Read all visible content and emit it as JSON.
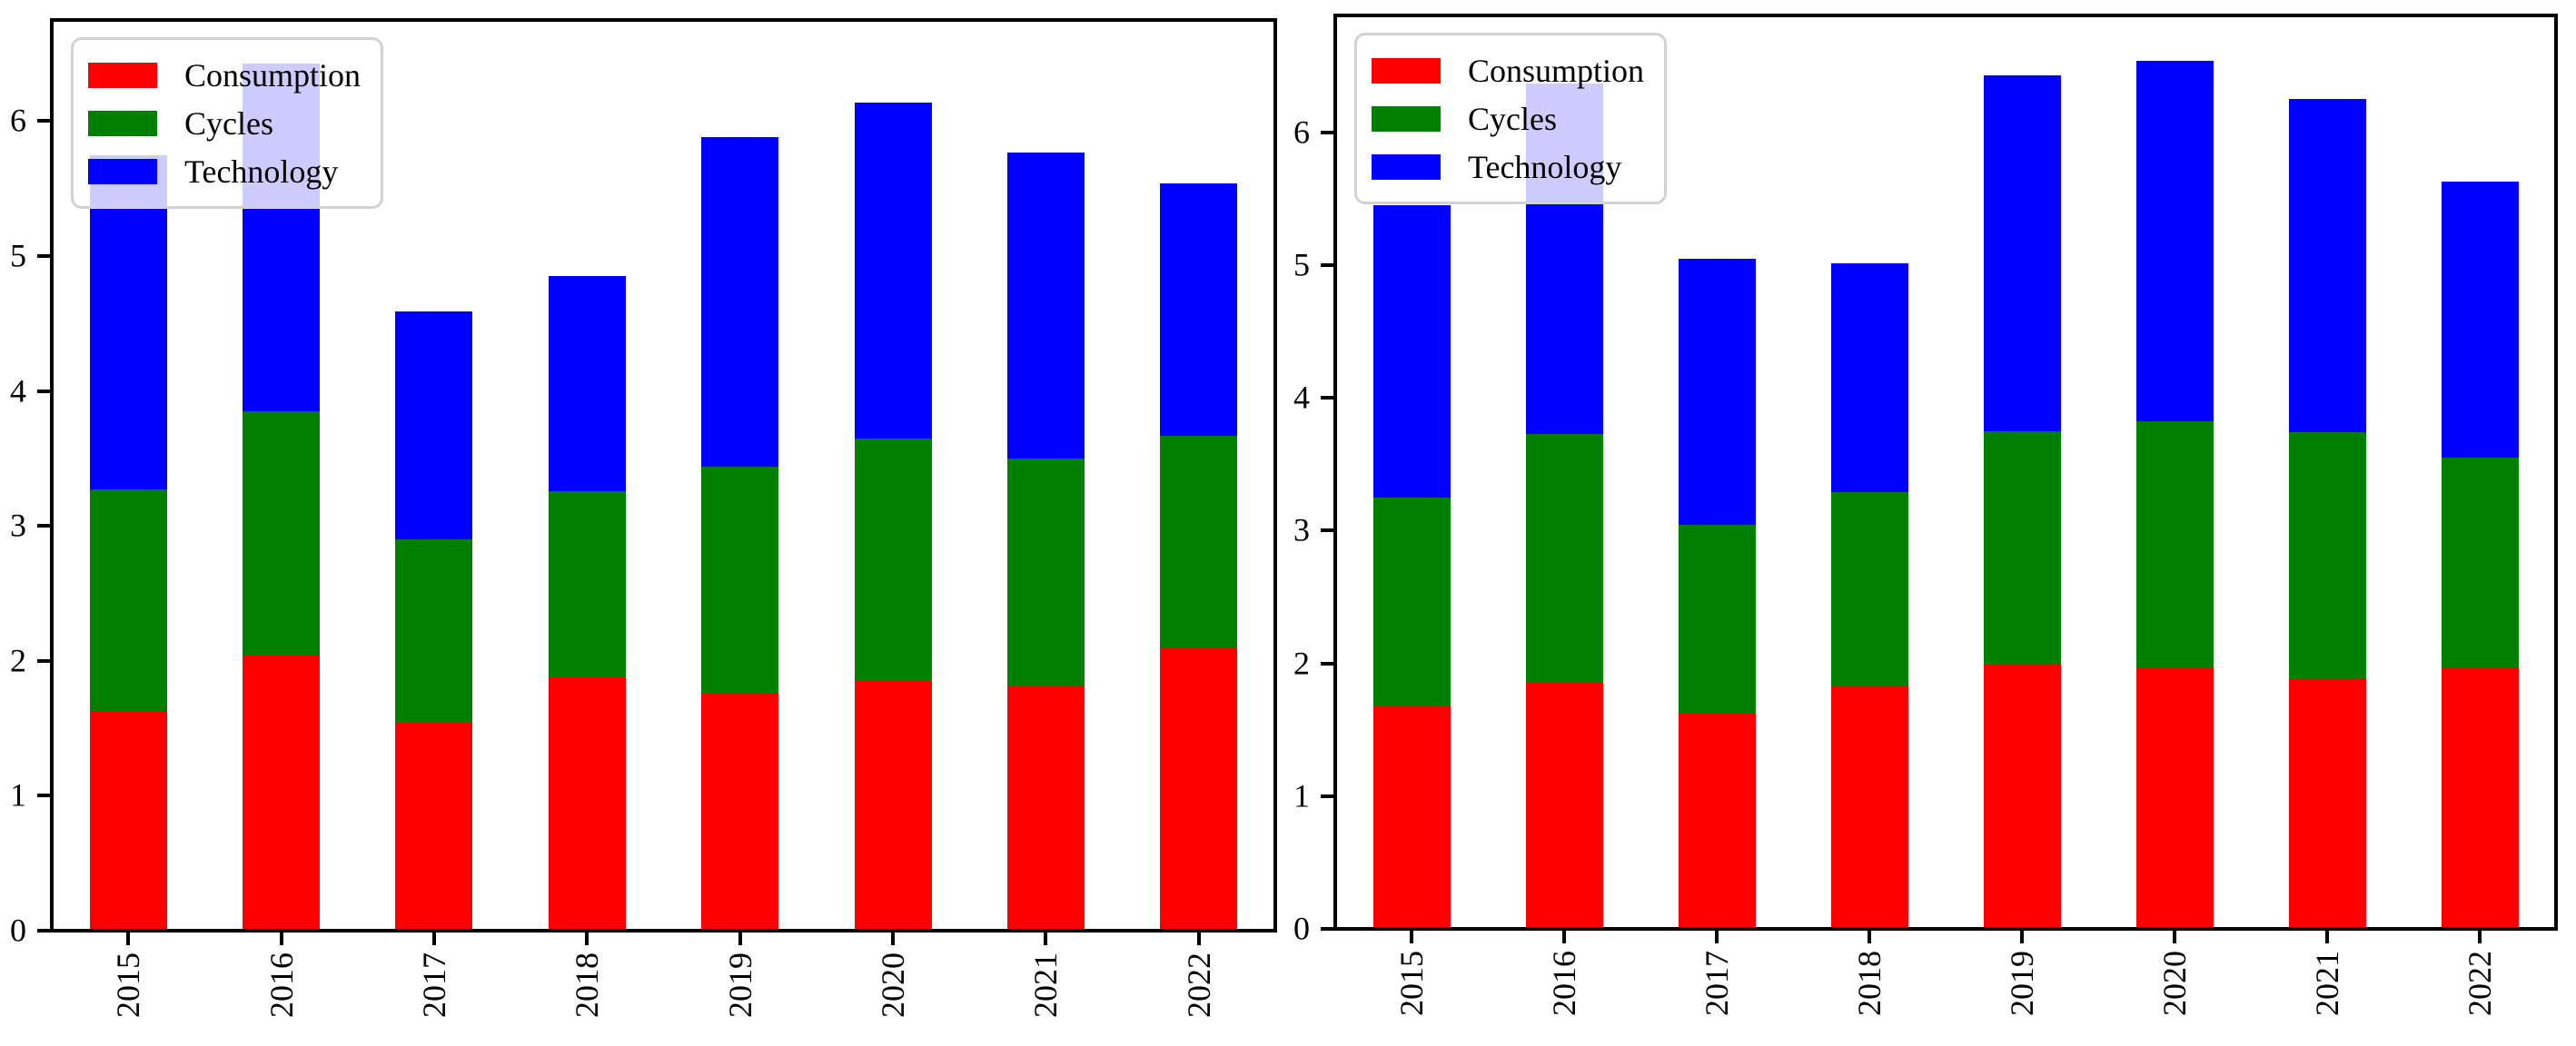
{
  "figure": {
    "background": "#ffffff",
    "n_charts": 2
  },
  "colors": {
    "consumption": "#ff0000",
    "cycles": "#008000",
    "technology": "#0000ff",
    "axis": "#000000",
    "legend_border": "#d2d2d2"
  },
  "chart_data": [
    {
      "type": "bar",
      "stacked": true,
      "title": "",
      "xlabel": "",
      "ylabel": "",
      "grid": false,
      "legend_position": "upper-left",
      "categories": [
        "2015",
        "2016",
        "2017",
        "2018",
        "2019",
        "2020",
        "2021",
        "2022"
      ],
      "yticks": [
        "0",
        "1",
        "2",
        "3",
        "4",
        "5",
        "6"
      ],
      "ylim": [
        0,
        6.75
      ],
      "series": [
        {
          "name": "Consumption",
          "color": "#ff0000",
          "values": [
            1.63,
            2.04,
            1.54,
            1.88,
            1.76,
            1.86,
            1.81,
            2.1
          ]
        },
        {
          "name": "Cycles",
          "color": "#008000",
          "values": [
            1.64,
            1.81,
            1.36,
            1.38,
            1.68,
            1.79,
            1.69,
            1.57
          ]
        },
        {
          "name": "Technology",
          "color": "#0000ff",
          "values": [
            2.48,
            2.58,
            1.69,
            1.59,
            2.44,
            2.49,
            2.27,
            1.87
          ]
        }
      ],
      "stack_totals": [
        5.75,
        6.43,
        4.59,
        4.85,
        5.88,
        6.14,
        5.77,
        5.54
      ]
    },
    {
      "type": "bar",
      "stacked": true,
      "title": "",
      "xlabel": "",
      "ylabel": "",
      "grid": false,
      "legend_position": "upper-left",
      "categories": [
        "2015",
        "2016",
        "2017",
        "2018",
        "2019",
        "2020",
        "2021",
        "2022"
      ],
      "yticks": [
        "0",
        "1",
        "2",
        "3",
        "4",
        "5",
        "6"
      ],
      "ylim": [
        0,
        6.88
      ],
      "series": [
        {
          "name": "Consumption",
          "color": "#ff0000",
          "values": [
            1.68,
            1.85,
            1.63,
            1.83,
            2.0,
            1.97,
            1.89,
            1.97
          ]
        },
        {
          "name": "Cycles",
          "color": "#008000",
          "values": [
            1.57,
            1.88,
            1.41,
            1.46,
            1.75,
            1.85,
            1.85,
            1.58
          ]
        },
        {
          "name": "Technology",
          "color": "#0000ff",
          "values": [
            2.2,
            2.64,
            2.01,
            1.72,
            2.68,
            2.72,
            2.51,
            2.08
          ]
        }
      ],
      "stack_totals": [
        5.45,
        6.37,
        5.05,
        5.01,
        6.43,
        6.54,
        6.25,
        5.63
      ]
    }
  ]
}
